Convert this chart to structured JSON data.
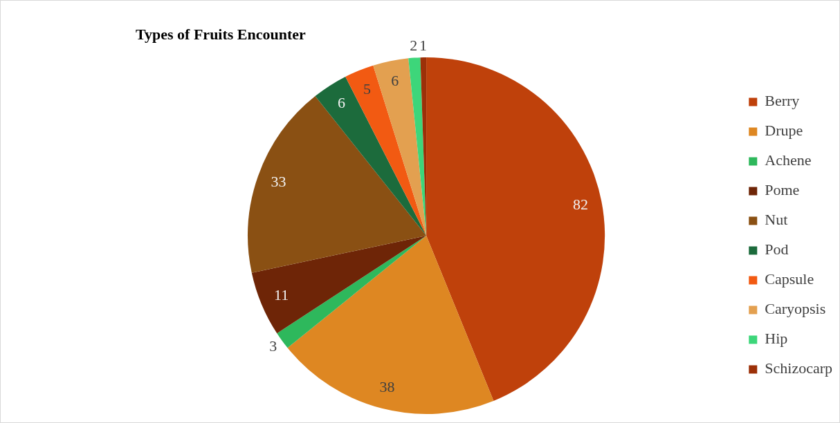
{
  "chart_data": {
    "type": "pie",
    "title": "Types of Fruits Encounter",
    "categories": [
      "Berry",
      "Drupe",
      "Achene",
      "Pome",
      "Nut",
      "Pod",
      "Capsule",
      "Caryopsis",
      "Hip",
      "Schizocarp"
    ],
    "values": [
      82,
      38,
      3,
      11,
      33,
      6,
      5,
      6,
      2,
      1
    ],
    "colors": [
      "#bf410b",
      "#de8722",
      "#2eb85c",
      "#6e2507",
      "#8a5013",
      "#1c6b3c",
      "#f25a12",
      "#e3a050",
      "#3dd67a",
      "#9c3008"
    ],
    "data_labels": true,
    "legend": "right"
  }
}
